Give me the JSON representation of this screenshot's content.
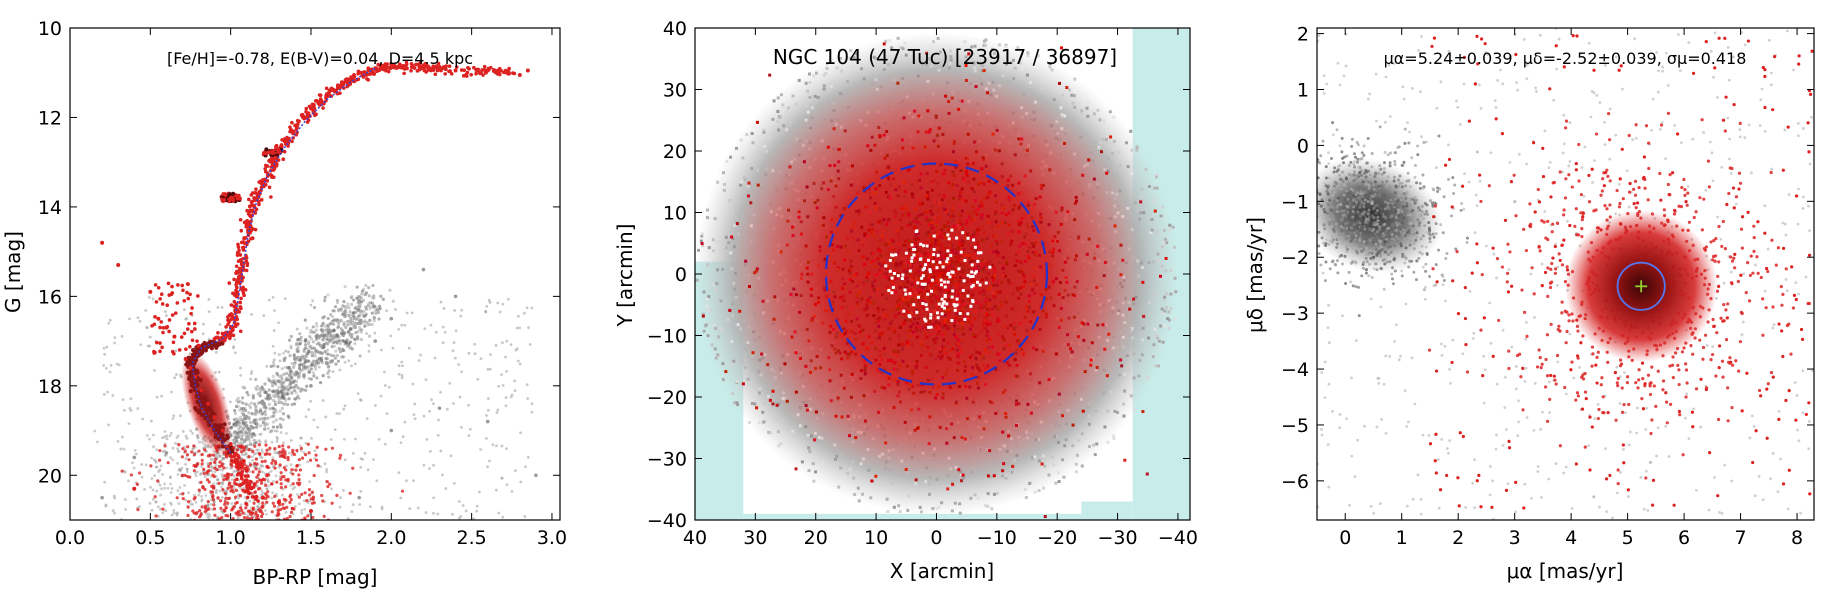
{
  "chart_data": [
    {
      "type": "scatter",
      "panel": "cmd",
      "annotation": "[Fe/H]=-0.78, E(B-V)=0.04, D=4.5 kpc",
      "xlabel": "BP-RP [mag]",
      "ylabel": "G [mag]",
      "xlim": [
        0.0,
        3.05
      ],
      "ylim": [
        21,
        10
      ],
      "y_inverted": true,
      "xticks": [
        "0.0",
        "0.5",
        "1.0",
        "1.5",
        "2.0",
        "2.5",
        "3.0"
      ],
      "yticks": [
        "10",
        "12",
        "14",
        "16",
        "18",
        "20"
      ],
      "colors": {
        "members": "#dd2222",
        "field": "#9a9a9a",
        "isochrone": "#3344dd"
      },
      "series": [
        {
          "role": "members",
          "points": [
            [
              0.72,
              17.4
            ],
            [
              0.75,
              17.6
            ],
            [
              0.78,
              17.8
            ],
            [
              0.82,
              18.1
            ],
            [
              0.86,
              18.4
            ],
            [
              0.9,
              18.7
            ],
            [
              0.95,
              19.0
            ],
            [
              1.0,
              19.3
            ],
            [
              1.05,
              19.6
            ],
            [
              1.1,
              19.9
            ],
            [
              1.15,
              20.2
            ],
            [
              1.2,
              20.5
            ],
            [
              0.8,
              17.1
            ],
            [
              0.9,
              16.95
            ],
            [
              1.0,
              16.8
            ],
            [
              1.04,
              16.3
            ],
            [
              1.07,
              15.6
            ],
            [
              1.1,
              14.8
            ],
            [
              1.14,
              14.1
            ],
            [
              1.2,
              13.5
            ],
            [
              1.28,
              12.9
            ],
            [
              1.38,
              12.3
            ],
            [
              1.5,
              11.8
            ],
            [
              1.62,
              11.4
            ],
            [
              1.75,
              11.1
            ],
            [
              1.9,
              10.9
            ],
            [
              2.05,
              10.85
            ],
            [
              2.2,
              10.9
            ],
            [
              2.4,
              10.95
            ],
            [
              2.6,
              10.95
            ],
            [
              2.8,
              11.05
            ],
            [
              2.85,
              10.95
            ],
            [
              0.95,
              13.85
            ],
            [
              1.0,
              13.8
            ],
            [
              1.05,
              13.75
            ],
            [
              1.22,
              12.8
            ],
            [
              1.3,
              12.75
            ],
            [
              0.3,
              15.3
            ],
            [
              0.55,
              16.5
            ],
            [
              0.6,
              16.7
            ],
            [
              0.65,
              16.9
            ],
            [
              0.5,
              15.9
            ],
            [
              0.2,
              14.8
            ],
            [
              0.4,
              20.3
            ],
            [
              1.3,
              20.6
            ],
            [
              1.5,
              20.8
            ]
          ]
        },
        {
          "role": "field",
          "points": [
            [
              1.1,
              18.9
            ],
            [
              1.2,
              18.4
            ],
            [
              1.3,
              17.9
            ],
            [
              1.4,
              17.4
            ],
            [
              1.55,
              16.9
            ],
            [
              1.7,
              16.4
            ],
            [
              1.8,
              16.1
            ],
            [
              0.9,
              19.2
            ],
            [
              1.0,
              19.1
            ],
            [
              1.5,
              18.0
            ],
            [
              1.6,
              17.5
            ],
            [
              1.9,
              17.0
            ],
            [
              0.6,
              19.5
            ],
            [
              0.7,
              20.0
            ],
            [
              1.3,
              19.5
            ],
            [
              2.0,
              19.0
            ],
            [
              2.3,
              18.5
            ],
            [
              2.6,
              18.8
            ],
            [
              2.0,
              16.5
            ],
            [
              2.2,
              15.4
            ],
            [
              2.4,
              16.0
            ],
            [
              0.4,
              19.6
            ],
            [
              0.2,
              20.5
            ],
            [
              2.9,
              20.0
            ],
            [
              1.8,
              20.5
            ]
          ]
        }
      ]
    },
    {
      "type": "scatter",
      "panel": "sky",
      "title": "NGC 104 (47 Tuc)   [23917 / 36897]",
      "xlabel": "X [arcmin]",
      "ylabel": "Y [arcmin]",
      "xlim": [
        40,
        -42
      ],
      "ylim": [
        -40,
        40
      ],
      "x_inverted": true,
      "xticks": [
        "40",
        "30",
        "20",
        "10",
        "0",
        "−10",
        "−20",
        "−30",
        "−40"
      ],
      "yticks": [
        "−40",
        "−30",
        "−20",
        "−10",
        "0",
        "10",
        "20",
        "30",
        "40"
      ],
      "circle_radius": 18.3,
      "colors": {
        "members": "#dd2222",
        "field": "#a8a8a8",
        "mask": "#c8ecea",
        "circle": "#2233cc"
      }
    },
    {
      "type": "scatter",
      "panel": "proper-motion",
      "annotation": "μα=5.24±0.039, μδ=-2.52±0.039, σμ=0.418",
      "xlabel": "μα [mas/yr]",
      "ylabel": "μδ [mas/yr]",
      "xlim": [
        -0.5,
        8.3
      ],
      "ylim": [
        -6.7,
        2.1
      ],
      "xticks": [
        "0",
        "1",
        "2",
        "3",
        "4",
        "5",
        "6",
        "7",
        "8"
      ],
      "yticks": [
        "2",
        "1",
        "0",
        "−1",
        "−2",
        "−3",
        "−4",
        "−5",
        "−6"
      ],
      "cluster_center": [
        5.24,
        -2.52
      ],
      "cluster_sigma": 0.418,
      "field_center": [
        0.45,
        -1.25
      ],
      "colors": {
        "members": "#dd2222",
        "field": "#8a8a8a",
        "circle": "#5577ee",
        "center": "#99cc33"
      }
    }
  ]
}
